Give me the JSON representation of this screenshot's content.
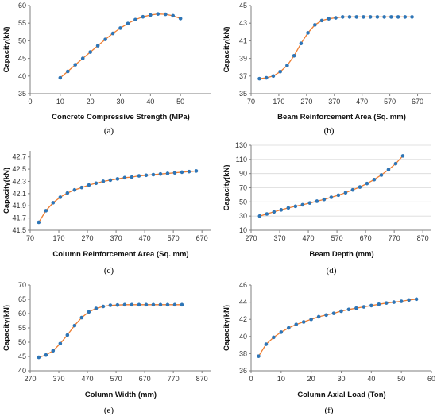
{
  "colors": {
    "line": "#ED7D31",
    "marker": "#2E75B6",
    "axis": "#7F7F7F",
    "grid": "#D9D9D9"
  },
  "chart_data": [
    {
      "type": "line",
      "caption": "(a)",
      "xlabel": "Concrete Compressive Strength (MPa)",
      "ylabel": "Capacity(kN)",
      "xlim": [
        0,
        60
      ],
      "ylim": [
        35,
        60
      ],
      "xticks": [
        0,
        10,
        20,
        30,
        40,
        50
      ],
      "yticks": [
        35,
        40,
        45,
        50,
        55,
        60
      ],
      "grid": false,
      "x": [
        10,
        12.5,
        15,
        17.5,
        20,
        22.5,
        25,
        27.5,
        30,
        32.5,
        35,
        37.5,
        40,
        42.5,
        45,
        47.5,
        50
      ],
      "y": [
        39.5,
        41.3,
        43.2,
        45.0,
        46.8,
        48.6,
        50.4,
        52.1,
        53.6,
        54.9,
        56.0,
        56.8,
        57.3,
        57.6,
        57.5,
        57.1,
        56.3
      ]
    },
    {
      "type": "line",
      "caption": "(b)",
      "xlabel": "Beam Reinforcement Area (Sq. mm)",
      "ylabel": "Capacity(kN)",
      "xlim": [
        70,
        720
      ],
      "ylim": [
        35,
        45
      ],
      "xticks": [
        70,
        170,
        270,
        370,
        470,
        570,
        670
      ],
      "yticks": [
        35,
        37,
        39,
        41,
        43,
        45
      ],
      "grid": false,
      "x": [
        100,
        125,
        150,
        175,
        200,
        225,
        250,
        275,
        300,
        325,
        350,
        375,
        400,
        425,
        450,
        475,
        500,
        525,
        550,
        575,
        600,
        625,
        650
      ],
      "y": [
        36.7,
        36.8,
        37.0,
        37.5,
        38.2,
        39.3,
        40.7,
        41.9,
        42.8,
        43.3,
        43.5,
        43.6,
        43.7,
        43.7,
        43.7,
        43.7,
        43.7,
        43.7,
        43.7,
        43.7,
        43.7,
        43.7,
        43.7
      ]
    },
    {
      "type": "line",
      "caption": "(c)",
      "xlabel": "Column Reinforcement Area (Sq. mm)",
      "ylabel": "Capacity(kN)",
      "xlim": [
        70,
        700
      ],
      "ylim": [
        41.5,
        42.8
      ],
      "xticks": [
        70,
        170,
        270,
        370,
        470,
        570,
        670
      ],
      "yticks": [
        41.5,
        41.7,
        41.9,
        42.1,
        42.3,
        42.5,
        42.7
      ],
      "grid": false,
      "x": [
        100,
        125,
        150,
        175,
        200,
        225,
        250,
        275,
        300,
        325,
        350,
        375,
        400,
        425,
        450,
        475,
        500,
        525,
        550,
        575,
        600,
        625,
        650
      ],
      "y": [
        41.63,
        41.82,
        41.95,
        42.04,
        42.11,
        42.16,
        42.2,
        42.24,
        42.27,
        42.3,
        42.32,
        42.34,
        42.36,
        42.37,
        42.39,
        42.4,
        42.41,
        42.42,
        42.43,
        42.44,
        42.45,
        42.46,
        42.47
      ]
    },
    {
      "type": "line",
      "caption": "(d)",
      "xlabel": "Beam Depth (mm)",
      "ylabel": "Capacity(kN)",
      "xlim": [
        270,
        900
      ],
      "ylim": [
        10,
        130
      ],
      "xticks": [
        270,
        370,
        470,
        570,
        670,
        770,
        870
      ],
      "yticks": [
        10,
        30,
        50,
        70,
        90,
        110,
        130
      ],
      "grid": true,
      "x": [
        300,
        325,
        350,
        375,
        400,
        425,
        450,
        475,
        500,
        525,
        550,
        575,
        600,
        625,
        650,
        675,
        700,
        725,
        750,
        775,
        800
      ],
      "y": [
        30.0,
        33.0,
        36.0,
        38.8,
        41.5,
        43.8,
        46.0,
        48.5,
        51.0,
        53.5,
        56.5,
        59.5,
        63.0,
        67.0,
        71.0,
        76.0,
        81.5,
        88.0,
        95.5,
        104.0,
        115.0
      ]
    },
    {
      "type": "line",
      "caption": "(e)",
      "xlabel": "Column Width (mm)",
      "ylabel": "Capacity(kN)",
      "xlim": [
        270,
        900
      ],
      "ylim": [
        40,
        70
      ],
      "xticks": [
        270,
        370,
        470,
        570,
        670,
        770,
        870
      ],
      "yticks": [
        40,
        45,
        50,
        55,
        60,
        65,
        70
      ],
      "grid": false,
      "x": [
        300,
        325,
        350,
        375,
        400,
        425,
        450,
        475,
        500,
        525,
        550,
        575,
        600,
        625,
        650,
        675,
        700,
        725,
        750,
        775,
        800
      ],
      "y": [
        44.7,
        45.5,
        47.0,
        49.5,
        52.5,
        55.8,
        58.6,
        60.6,
        61.8,
        62.5,
        62.9,
        63.0,
        63.1,
        63.1,
        63.1,
        63.1,
        63.1,
        63.1,
        63.1,
        63.1,
        63.1
      ]
    },
    {
      "type": "line",
      "caption": "(f)",
      "xlabel": "Column Axial Load (Ton)",
      "ylabel": "Capacity(kN)",
      "xlim": [
        0,
        60
      ],
      "ylim": [
        36,
        46
      ],
      "xticks": [
        0,
        10,
        20,
        30,
        40,
        50,
        60
      ],
      "yticks": [
        36,
        38,
        40,
        42,
        44,
        46
      ],
      "grid": false,
      "x": [
        2.5,
        5,
        7.5,
        10,
        12.5,
        15,
        17.5,
        20,
        22.5,
        25,
        27.5,
        30,
        32.5,
        35,
        37.5,
        40,
        42.5,
        45,
        47.5,
        50,
        52.5,
        55
      ],
      "y": [
        37.7,
        39.1,
        39.9,
        40.5,
        41.0,
        41.4,
        41.7,
        42.0,
        42.3,
        42.5,
        42.7,
        42.95,
        43.15,
        43.3,
        43.45,
        43.6,
        43.75,
        43.9,
        44.0,
        44.1,
        44.25,
        44.35
      ]
    }
  ]
}
